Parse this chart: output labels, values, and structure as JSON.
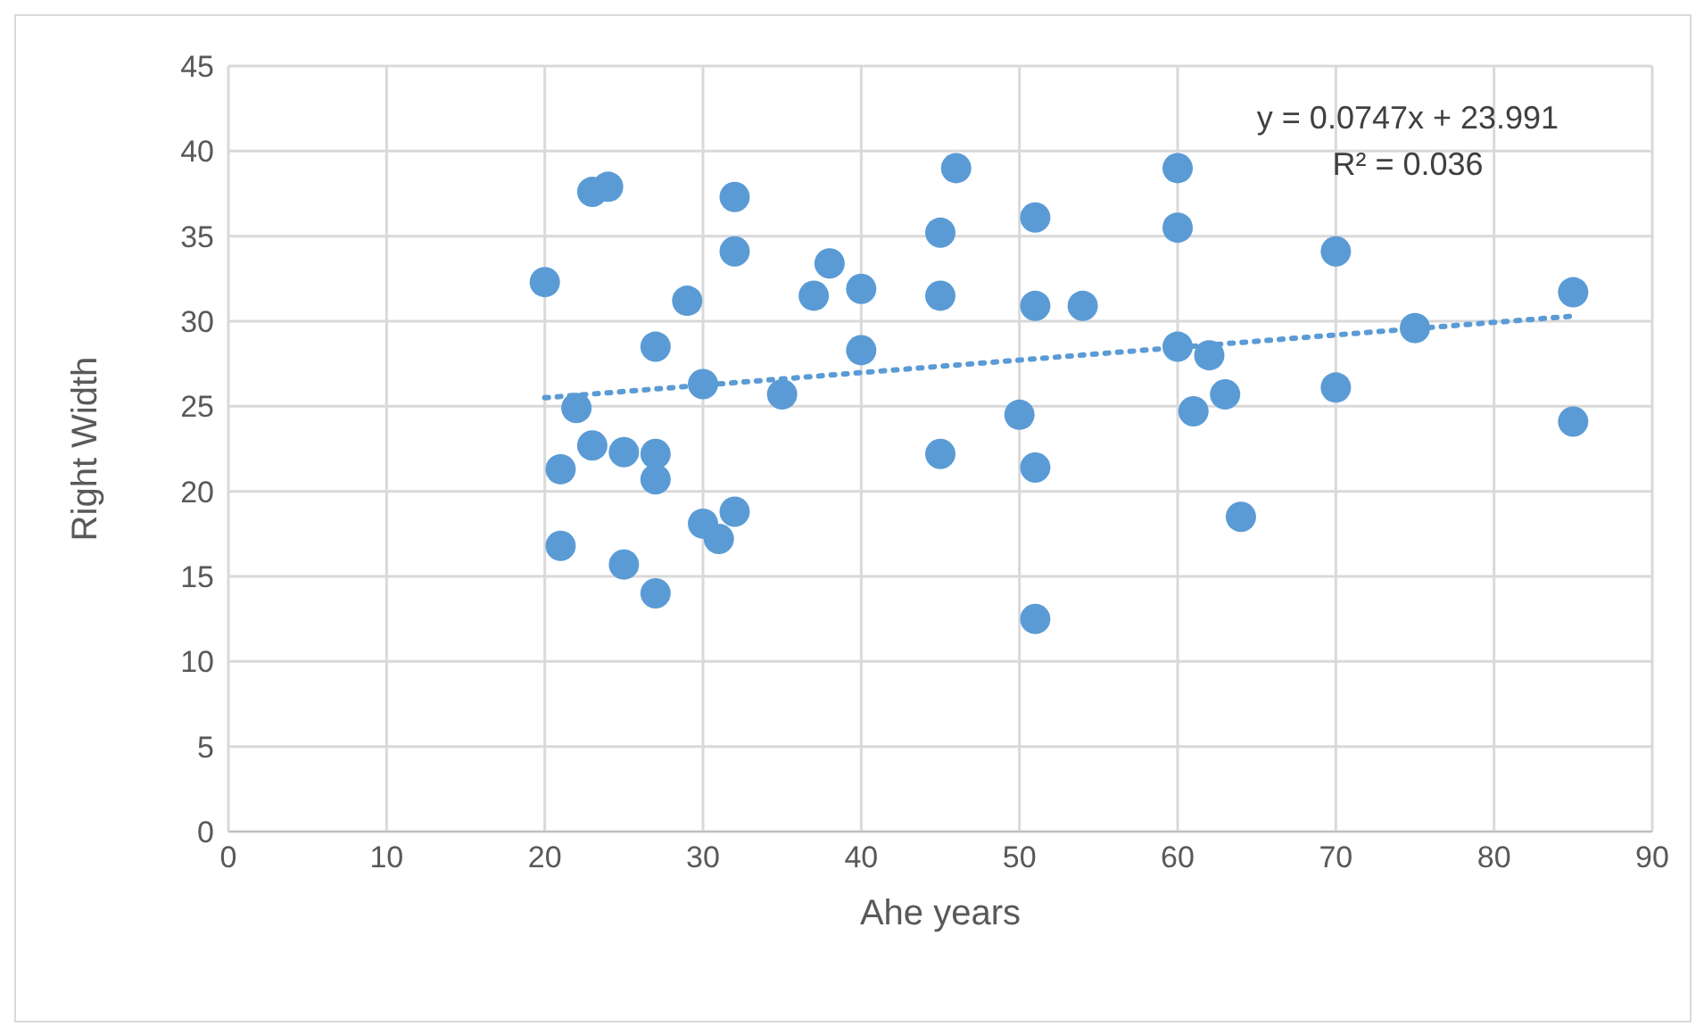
{
  "chart_data": {
    "type": "scatter",
    "xlabel": "Ahe years",
    "ylabel": "Right Width",
    "xlim": [
      0,
      90
    ],
    "xticks": [
      0,
      10,
      20,
      30,
      40,
      50,
      60,
      70,
      80,
      90
    ],
    "ylim": [
      0,
      45
    ],
    "yticks": [
      0,
      5,
      10,
      15,
      20,
      25,
      30,
      35,
      40,
      45
    ],
    "grid": true,
    "marker": "circle",
    "annotations": [
      "y = 0.0747x + 23.991",
      "R² = 0.036"
    ],
    "series": [
      {
        "color": "#5b9bd5",
        "x": [
          27,
          30,
          40,
          35,
          22,
          23,
          25,
          27,
          21,
          27,
          45,
          32,
          30,
          31,
          21,
          25,
          27,
          20,
          23,
          24,
          32,
          32,
          29,
          38,
          37,
          40,
          46,
          45,
          45,
          51,
          51,
          54,
          50,
          51,
          51,
          60,
          60,
          60,
          62,
          61,
          63,
          64,
          70,
          70,
          75,
          85,
          85
        ],
        "values": [
          28.5,
          26.3,
          28.3,
          25.7,
          24.9,
          22.7,
          22.3,
          22.2,
          21.3,
          20.7,
          22.2,
          18.8,
          18.1,
          17.2,
          16.8,
          15.7,
          14.0,
          32.3,
          37.6,
          37.9,
          37.3,
          34.1,
          31.2,
          33.4,
          31.5,
          31.9,
          39.0,
          35.2,
          31.5,
          36.1,
          30.9,
          30.9,
          24.5,
          21.4,
          12.5,
          39.0,
          35.5,
          28.5,
          28.0,
          24.7,
          25.7,
          18.5,
          34.1,
          26.1,
          29.6,
          31.7,
          24.1
        ]
      },
      {
        "type": "line",
        "color": "#5b9bd5",
        "line_style": "dotted",
        "marker": "none",
        "x": [
          20,
          85
        ],
        "values": [
          25.5,
          30.3
        ]
      }
    ]
  }
}
